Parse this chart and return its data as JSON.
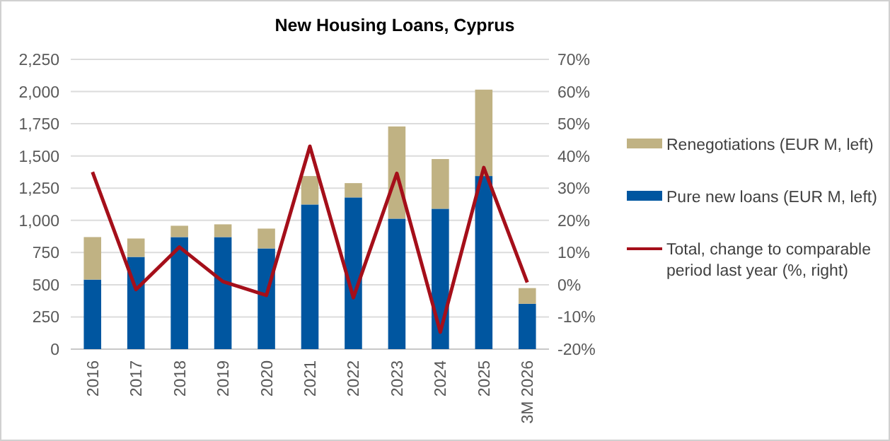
{
  "chart_data": {
    "type": "bar",
    "title": "New Housing Loans, Cyprus",
    "stacked": true,
    "categories": [
      "2016",
      "2017",
      "2018",
      "2019",
      "2020",
      "2021",
      "2022",
      "2023",
      "2024",
      "2025",
      "3M 2026"
    ],
    "series": [
      {
        "name": "Pure new loans (EUR M, left)",
        "color": "#0056a0",
        "values": [
          540,
          716,
          870,
          870,
          782,
          1123,
          1178,
          1013,
          1090,
          1344,
          352
        ]
      },
      {
        "name": "Renegotiations (EUR M, left)",
        "color": "#c0b283",
        "values": [
          330,
          143,
          88,
          99,
          154,
          221,
          111,
          716,
          386,
          671,
          122
        ]
      },
      {
        "name": "Total, change to comparable period last year (%, right)",
        "type": "line",
        "axis": "y2",
        "color": "#a50f1a",
        "values": [
          35,
          -1.5,
          11.7,
          1,
          -3.3,
          43,
          -4,
          34.6,
          -14.7,
          36.4,
          0.7
        ]
      }
    ],
    "ylim": [
      0,
      2250
    ],
    "yticks": [
      0,
      {
        "value": 250,
        "label": "250"
      },
      {
        "value": 500,
        "label": "500"
      },
      {
        "value": 750,
        "label": "750"
      },
      {
        "value": 1000,
        "label": "1,000"
      },
      {
        "value": 1250,
        "label": "1,250"
      },
      {
        "value": 1500,
        "label": "1,500"
      },
      {
        "value": 1750,
        "label": "1,750"
      },
      {
        "value": 2000,
        "label": "2,000"
      },
      {
        "value": 2250,
        "label": "2,250"
      }
    ],
    "y2lim": [
      -20,
      70
    ],
    "y2ticks": [
      {
        "value": -20,
        "label": "-20%"
      },
      {
        "value": -10,
        "label": "-10%"
      },
      {
        "value": 0,
        "label": "0%"
      },
      {
        "value": 10,
        "label": "10%"
      },
      {
        "value": 20,
        "label": "20%"
      },
      {
        "value": 30,
        "label": "30%"
      },
      {
        "value": 40,
        "label": "40%"
      },
      {
        "value": 50,
        "label": "50%"
      },
      {
        "value": 60,
        "label": "60%"
      },
      {
        "value": 70,
        "label": "70%"
      }
    ],
    "grid": "y",
    "legend": "right",
    "marker": "none",
    "line_style": "solid"
  }
}
